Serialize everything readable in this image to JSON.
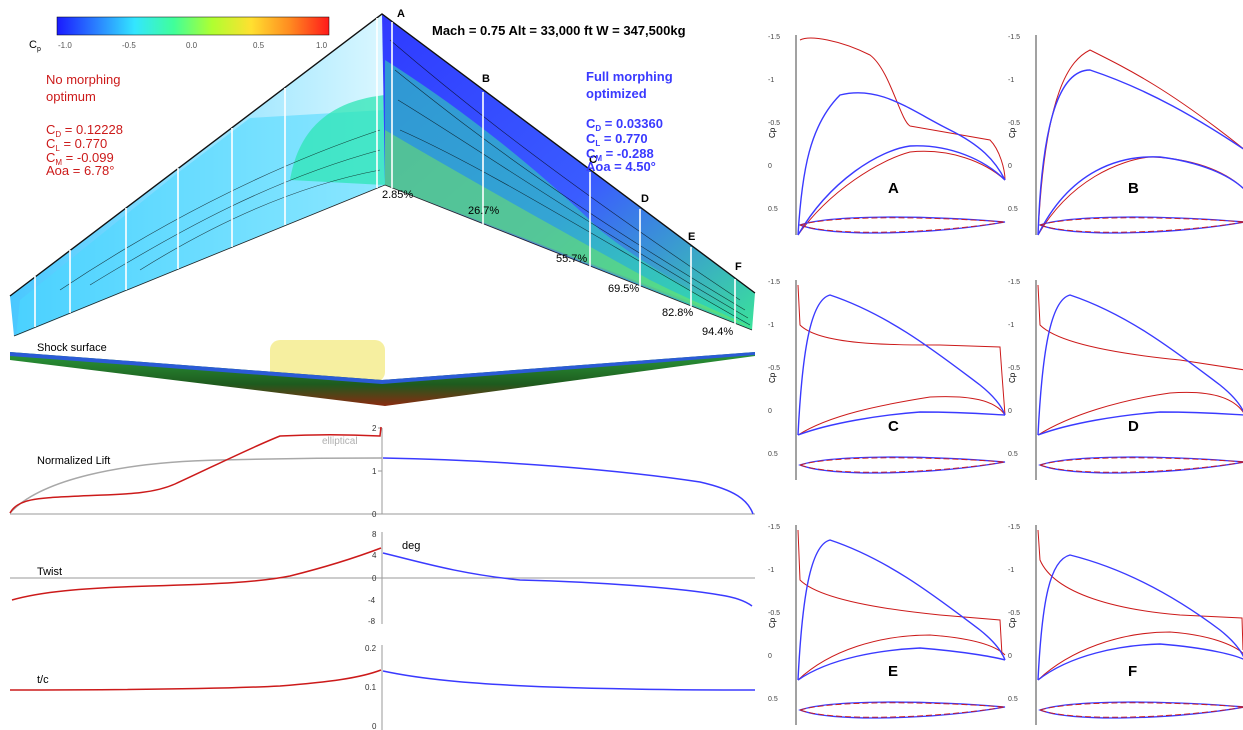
{
  "header": {
    "flight_condition": "Mach = 0.75 Alt = 33,000 ft  W = 347,500kg"
  },
  "colorbar": {
    "label": "C",
    "label_sub": "p",
    "ticks": [
      "-1.0",
      "-0.5",
      "0.0",
      "0.5",
      "1.0"
    ],
    "colors": [
      "#1a1aff",
      "#2a7fff",
      "#33e6ff",
      "#40ff9a",
      "#b0ff30",
      "#ffe030",
      "#ff8a20",
      "#ff1a1a"
    ]
  },
  "no_morphing": {
    "title_line1": "No morphing",
    "title_line2": "optimum",
    "cd_label": "C",
    "cd_sub": "D",
    "cd_value": " = 0.12228",
    "cl_label": "C",
    "cl_sub": "L",
    "cl_value": " = 0.770",
    "cm_label": "C",
    "cm_sub": "M",
    "cm_value": " = -0.099",
    "aoa": "Aoa = 6.78°",
    "color": "#cc1a1a"
  },
  "full_morphing": {
    "title_line1": "Full morphing",
    "title_line2": "optimized",
    "cd_label": "C",
    "cd_sub": "D",
    "cd_value": " = 0.03360",
    "cl_label": "C",
    "cl_sub": "L",
    "cl_value": " = 0.770",
    "cm_label": "C",
    "cm_sub": "M",
    "cm_value": " = -0.288",
    "aoa": "Aoa = 4.50°",
    "color": "#3a3aff"
  },
  "stations": [
    {
      "letter": "A",
      "span": "2.85%"
    },
    {
      "letter": "B",
      "span": "26.7%"
    },
    {
      "letter": "C",
      "span": "55.7%"
    },
    {
      "letter": "D",
      "span": "69.5%"
    },
    {
      "letter": "E",
      "span": "82.8%"
    },
    {
      "letter": "F",
      "span": "94.4%"
    }
  ],
  "shock_surface_label": "Shock surface",
  "lift_plot": {
    "label": "Normalized Lift",
    "elliptical_label": "elliptical",
    "ticks": [
      "2",
      "1",
      "0"
    ]
  },
  "twist_plot": {
    "label": "Twist",
    "unit": "deg",
    "ticks": [
      "8",
      "4",
      "0",
      "-4",
      "-8"
    ]
  },
  "tc_plot": {
    "label": "t/c",
    "ticks": [
      "0.2",
      "0.1",
      "0"
    ]
  },
  "section_plots": {
    "axis_label": "C",
    "axis_sub": "p",
    "ticks": [
      "-1.5",
      "-1",
      "-0.5",
      "0",
      "0.5"
    ],
    "sections": [
      "A",
      "B",
      "C",
      "D",
      "E",
      "F"
    ]
  }
}
